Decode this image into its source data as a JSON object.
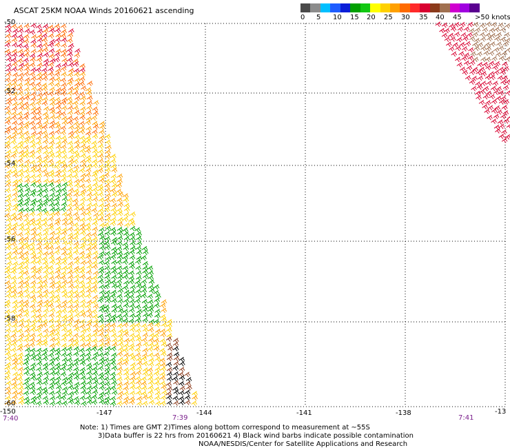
{
  "title": "ASCAT 25KM NOAA Winds 20160621 ascending",
  "legend": {
    "colors": [
      "#4a4a4a",
      "#8c8c8c",
      "#00bfff",
      "#1e5cff",
      "#0a1ed8",
      "#00a000",
      "#12c812",
      "#ffff00",
      "#ffd000",
      "#ffa000",
      "#ff6a00",
      "#ff2a2a",
      "#d80030",
      "#8b3a1a",
      "#a07050",
      "#d000d0",
      "#a000e0",
      "#5a0090"
    ],
    "labels": [
      "0",
      "5",
      "10",
      "15",
      "20",
      "25",
      "30",
      "35",
      "40",
      "45",
      ">50 knots"
    ]
  },
  "axes": {
    "lat_labels": [
      "-50",
      "-52",
      "-54",
      "-56",
      "-58",
      "-60"
    ],
    "lon_labels": [
      "-150",
      "-147",
      "-144",
      "-141",
      "-138",
      "-13"
    ],
    "time_labels": [
      "7:40",
      "7:39",
      "7:41"
    ]
  },
  "notes": {
    "line1": "Note: 1) Times are GMT 2)Times along bottom correspond to measurement at ~55S",
    "line2": "3)Data buffer is 22 hrs from 20160621 4) Black wind barbs indicate possible contamination",
    "line3": "NOAA/NESDIS/Center for Satellite Applications and Research"
  }
}
